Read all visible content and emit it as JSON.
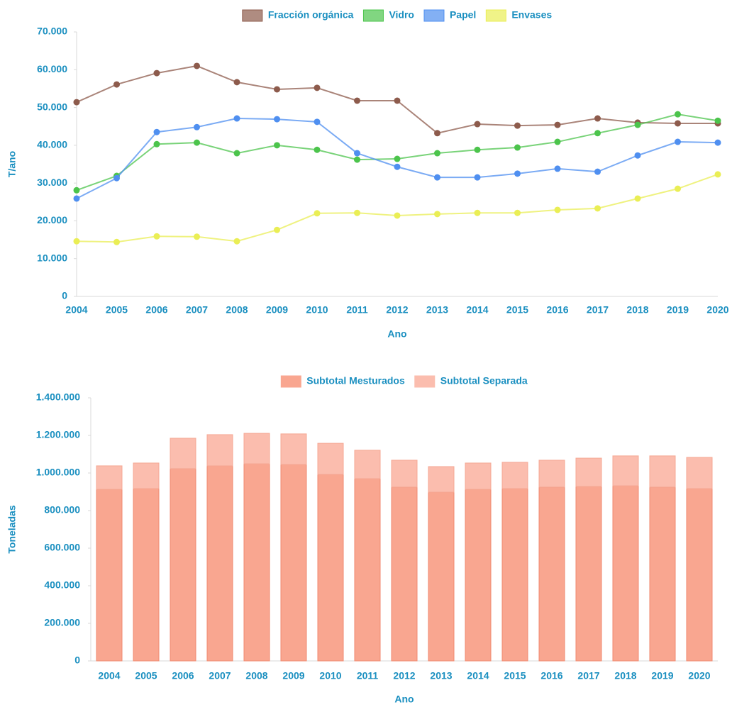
{
  "chart_data": [
    {
      "type": "line",
      "y_label": "T/ano",
      "x_label": "Ano",
      "legend": "top",
      "grid": false,
      "categories": [
        "2004",
        "2005",
        "2006",
        "2007",
        "2008",
        "2009",
        "2010",
        "2011",
        "2012",
        "2013",
        "2014",
        "2015",
        "2016",
        "2017",
        "2018",
        "2019",
        "2020"
      ],
      "ylim": [
        0,
        70000
      ],
      "yticks": [
        0,
        {
          "value": 10000,
          "label": "10.000"
        },
        {
          "value": 20000,
          "label": "20.000"
        },
        {
          "value": 30000,
          "label": "30.000"
        },
        {
          "value": 40000,
          "label": "40.000"
        },
        {
          "value": 50000,
          "label": "50.000"
        },
        {
          "value": 60000,
          "label": "60.000"
        },
        {
          "value": 70000,
          "label": "70.000"
        }
      ],
      "series": [
        {
          "name": "Fracción orgánica",
          "color": "#8d5b4c",
          "values": [
            51400,
            56100,
            59100,
            61000,
            56700,
            54800,
            55200,
            51800,
            51800,
            43200,
            45600,
            45200,
            45400,
            47100,
            46000,
            45800,
            45800
          ]
        },
        {
          "name": "Vidro",
          "color": "#4cc44c",
          "values": [
            28100,
            31900,
            40300,
            40700,
            37900,
            40000,
            38800,
            36200,
            36400,
            37900,
            38800,
            39400,
            40900,
            43200,
            45400,
            48200,
            46500
          ]
        },
        {
          "name": "Papel",
          "color": "#4f8ff0",
          "values": [
            25900,
            31300,
            43500,
            44800,
            47100,
            46900,
            46200,
            37900,
            34300,
            31500,
            31500,
            32500,
            33800,
            33000,
            37300,
            40900,
            40700
          ]
        },
        {
          "name": "Envases",
          "color": "#eaee55",
          "values": [
            14600,
            14400,
            15900,
            15800,
            14600,
            17600,
            22000,
            22100,
            21400,
            21800,
            22100,
            22100,
            22900,
            23300,
            25900,
            28500,
            32300
          ]
        }
      ]
    },
    {
      "type": "bar",
      "stacked": true,
      "y_label": "Toneladas",
      "x_label": "Ano",
      "legend": "top",
      "grid": false,
      "categories": [
        "2004",
        "2005",
        "2006",
        "2007",
        "2008",
        "2009",
        "2010",
        "2011",
        "2012",
        "2013",
        "2014",
        "2015",
        "2016",
        "2017",
        "2018",
        "2019",
        "2020"
      ],
      "ylim": [
        0,
        1400000
      ],
      "yticks": [
        0,
        {
          "value": 200000,
          "label": "200.000"
        },
        {
          "value": 400000,
          "label": "400.000"
        },
        {
          "value": 600000,
          "label": "600.000"
        },
        {
          "value": 800000,
          "label": "800.000"
        },
        {
          "value": 1000000,
          "label": "1.000.000"
        },
        {
          "value": 1200000,
          "label": "1.200.000"
        },
        {
          "value": 1400000,
          "label": "1.400.000"
        }
      ],
      "series": [
        {
          "name": "Subtotal Mesturados",
          "color": "#f9a690",
          "values": [
            913000,
            917000,
            1023000,
            1038000,
            1049000,
            1045000,
            992000,
            970000,
            925000,
            898000,
            913000,
            917000,
            925000,
            928000,
            932000,
            925000,
            917000
          ]
        },
        {
          "name": "Subtotal Separada",
          "color": "#fbbdae",
          "values": [
            125000,
            136000,
            162000,
            166000,
            162000,
            163000,
            166000,
            151000,
            143000,
            136000,
            140000,
            140000,
            143000,
            151000,
            159000,
            166000,
            166000
          ]
        }
      ]
    }
  ]
}
